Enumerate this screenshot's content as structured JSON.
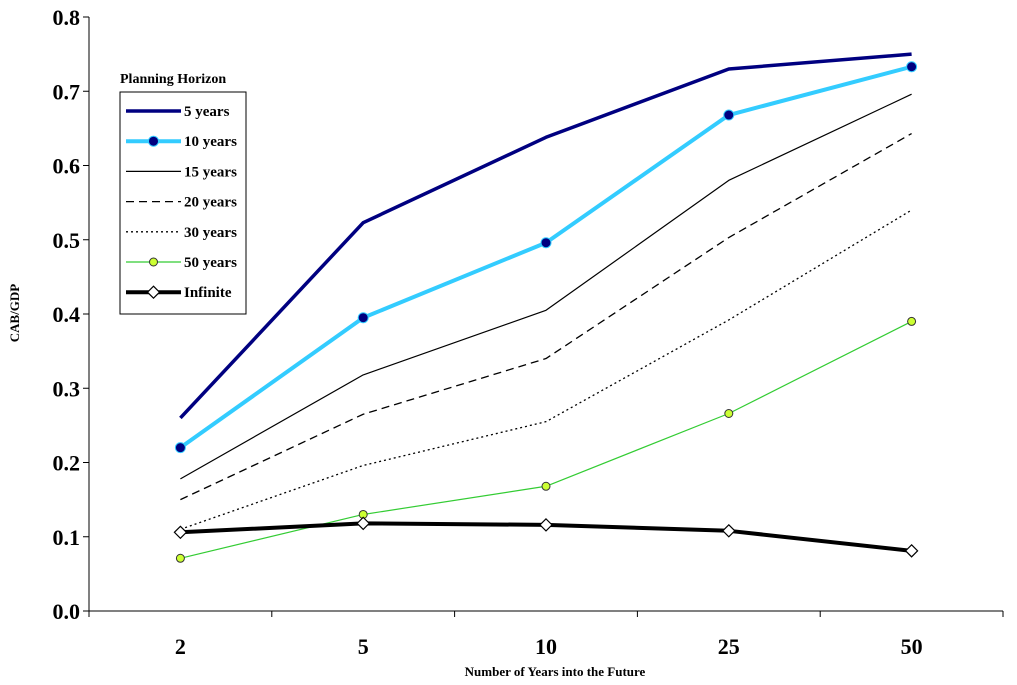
{
  "chart_data": {
    "type": "line",
    "xlabel": "Number of Years into the Future",
    "ylabel": "CAB/GDP",
    "categories": [
      "2",
      "5",
      "10",
      "25",
      "50"
    ],
    "ylim": [
      0.0,
      0.8
    ],
    "yticks": [
      "0.0",
      "0.1",
      "0.2",
      "0.3",
      "0.4",
      "0.5",
      "0.6",
      "0.7",
      "0.8"
    ],
    "grid": false,
    "legend": {
      "title": "Planning Horizon",
      "placement": "top-left"
    },
    "series": [
      {
        "name": "5 years",
        "values": [
          0.26,
          0.523,
          0.638,
          0.73,
          0.75
        ],
        "color": "#000080",
        "style": "thick-solid",
        "marker": "none"
      },
      {
        "name": "10 years",
        "values": [
          0.22,
          0.395,
          0.496,
          0.668,
          0.733
        ],
        "color": "#33CCFF",
        "style": "thick-solid",
        "marker": "circle",
        "marker_color": "#000080"
      },
      {
        "name": "15 years",
        "values": [
          0.178,
          0.318,
          0.405,
          0.58,
          0.696
        ],
        "color": "#000000",
        "style": "thin-solid",
        "marker": "none"
      },
      {
        "name": "20 years",
        "values": [
          0.15,
          0.265,
          0.34,
          0.503,
          0.643
        ],
        "color": "#000000",
        "style": "dashed",
        "marker": "none"
      },
      {
        "name": "30 years",
        "values": [
          0.11,
          0.196,
          0.255,
          0.392,
          0.54
        ],
        "color": "#000000",
        "style": "dotted",
        "marker": "none"
      },
      {
        "name": "50 years",
        "values": [
          0.071,
          0.13,
          0.168,
          0.266,
          0.39
        ],
        "color": "#33CC33",
        "style": "thin-solid",
        "marker": "circle",
        "marker_color": "#CCFF33"
      },
      {
        "name": "Infinite",
        "values": [
          0.106,
          0.118,
          0.116,
          0.108,
          0.081
        ],
        "color": "#000000",
        "style": "thick-solid",
        "marker": "diamond",
        "marker_color": "#FFFFFF"
      }
    ]
  }
}
